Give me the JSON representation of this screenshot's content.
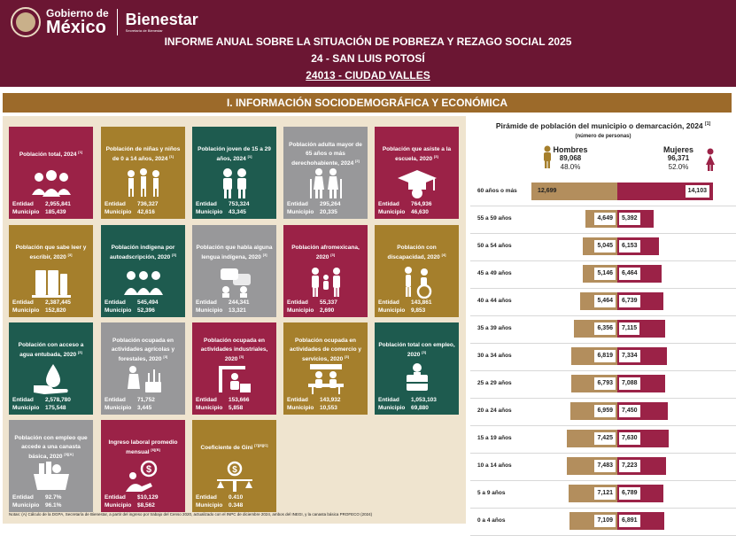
{
  "header": {
    "gobierno_small": "Gobierno de",
    "gobierno_big": "México",
    "bienestar": "Bienestar",
    "bienestar_small": "Secretaría de Bienestar",
    "title": "INFORME ANUAL SOBRE LA SITUACIÓN DE POBREZA Y REZAGO SOCIAL 2025",
    "state": "24 - SAN LUIS POTOSÍ",
    "municipality": "24013 - CIUDAD VALLES"
  },
  "section_title": "I. INFORMACIÓN SOCIODEMOGRÁFICA Y ECONÓMICA",
  "labels": {
    "entidad": "Entidad",
    "municipio": "Municipio"
  },
  "cards": [
    {
      "title": "Población total, 2024",
      "sup": "[1]",
      "entidad": "2,955,841",
      "municipio": "185,439",
      "color": "#9b2247",
      "icon": "people-group-icon"
    },
    {
      "title": "Población de niñas y niños de 0 a 14 años, 2024",
      "sup": "[1]",
      "entidad": "736,327",
      "municipio": "42,616",
      "color": "#a57f2c",
      "icon": "children-icon"
    },
    {
      "title": "Población joven de 15 a 29 años, 2024",
      "sup": "[1]",
      "entidad": "753,324",
      "municipio": "43,345",
      "color": "#1e5b4f",
      "icon": "youth-icon"
    },
    {
      "title": "Población adulta mayor de 65 años o más derechohabiente, 2024",
      "sup": "[2]",
      "entidad": "295,264",
      "municipio": "20,335",
      "color": "#98989a",
      "icon": "elderly-icon"
    },
    {
      "title": "Población que asiste a la escuela, 2020",
      "sup": "[3]",
      "entidad": "764,936",
      "municipio": "46,630",
      "color": "#9b2247",
      "icon": "graduation-icon"
    },
    {
      "title": "Población que sabe leer y escribir, 2020",
      "sup": "[3]",
      "entidad": "2,387,445",
      "municipio": "152,820",
      "color": "#a57f2c",
      "icon": "books-icon"
    },
    {
      "title": "Población indígena por autoadscripción, 2020",
      "sup": "[3]",
      "entidad": "545,494",
      "municipio": "52,396",
      "color": "#1e5b4f",
      "icon": "indigenous-icon"
    },
    {
      "title": "Población que habla alguna lengua indígena, 2020",
      "sup": "[3]",
      "entidad": "244,341",
      "municipio": "13,321",
      "color": "#98989a",
      "icon": "speech-icon"
    },
    {
      "title": "Población afromexicana, 2020",
      "sup": "[3]",
      "entidad": "55,337",
      "municipio": "2,690",
      "color": "#9b2247",
      "icon": "family-icon"
    },
    {
      "title": "Población con discapacidad, 2020",
      "sup": "[4]",
      "entidad": "143,861",
      "municipio": "9,853",
      "color": "#a57f2c",
      "icon": "wheelchair-icon"
    },
    {
      "title": "Población con acceso a agua entubada, 2020",
      "sup": "[3]",
      "entidad": "2,578,780",
      "municipio": "175,548",
      "color": "#1e5b4f",
      "icon": "water-icon"
    },
    {
      "title": "Población ocupada en actividades agrícolas y forestales, 2020",
      "sup": "[3]",
      "entidad": "71,752",
      "municipio": "3,445",
      "color": "#98989a",
      "icon": "agriculture-icon"
    },
    {
      "title": "Población ocupada en actividades industriales, 2020",
      "sup": "[3]",
      "entidad": "153,666",
      "municipio": "5,858",
      "color": "#9b2247",
      "icon": "industry-icon"
    },
    {
      "title": "Población ocupada en actividades de comercio y servicios, 2020",
      "sup": "[3]",
      "entidad": "143,932",
      "municipio": "10,553",
      "color": "#a57f2c",
      "icon": "commerce-icon"
    },
    {
      "title": "Población total con empleo, 2020",
      "sup": "[3]",
      "entidad": "1,053,103",
      "municipio": "69,880",
      "color": "#1e5b4f",
      "icon": "employment-icon"
    },
    {
      "title": "Población con empleo que accede a una canasta básica, 2020",
      "sup": "[3][A]",
      "entidad": "92.7%",
      "municipio": "96.1%",
      "color": "#98989a",
      "icon": "basket-icon"
    },
    {
      "title": "Ingreso laboral promedio mensual",
      "sup": "[6][B]",
      "entidad": "$10,129",
      "municipio": "$8,562",
      "color": "#9b2247",
      "icon": "income-icon"
    },
    {
      "title": "Coeficiente de Gini",
      "sup": "[7][8][C]",
      "entidad": "0.410",
      "municipio": "0.348",
      "color": "#a57f2c",
      "icon": "balance-icon"
    }
  ],
  "pyramid": {
    "title": "Pirámide de población del municipio o demarcación, 2024",
    "sup": "[1]",
    "subtitle": "(número de personas)",
    "hombres": {
      "label": "Hombres",
      "total": "89,068",
      "pct": "48.0%"
    },
    "mujeres": {
      "label": "Mujeres",
      "total": "96,371",
      "pct": "52.0%"
    },
    "colors": {
      "hombres": "#b38e5d",
      "mujeres": "#9b2247"
    }
  },
  "chart_data": {
    "type": "bar",
    "title": "Pirámide de población del municipio o demarcación, 2024",
    "categories": [
      "60 años o más",
      "55 a 59 años",
      "50 a 54 años",
      "45 a 49 años",
      "40 a 44 años",
      "35 a 39 años",
      "30 a 34 años",
      "25 a 29 años",
      "20 a 24 años",
      "15 a 19 años",
      "10 a 14 años",
      "5 a 9 años",
      "0 a 4 años"
    ],
    "series": [
      {
        "name": "Hombres",
        "values": [
          12699,
          4649,
          5045,
          5146,
          5464,
          6356,
          6819,
          6793,
          6959,
          7425,
          7483,
          7121,
          7109
        ]
      },
      {
        "name": "Mujeres",
        "values": [
          14103,
          5392,
          6153,
          6464,
          6739,
          7115,
          7334,
          7088,
          7450,
          7630,
          7223,
          6789,
          6891
        ]
      }
    ],
    "value_labels": {
      "Hombres": [
        "12,699",
        "4,649",
        "5,045",
        "5,146",
        "5,464",
        "6,356",
        "6,819",
        "6,793",
        "6,959",
        "7,425",
        "7,483",
        "7,121",
        "7,109"
      ],
      "Mujeres": [
        "14,103",
        "5,392",
        "6,153",
        "6,464",
        "6,739",
        "7,115",
        "7,334",
        "7,088",
        "7,450",
        "7,630",
        "7,223",
        "6,789",
        "6,891"
      ]
    }
  },
  "notes": "Notas: (A) Cálculo de la DGPA, Secretaría de Bienestar, a partir del ingreso por trabajo del Censo 2020, actualizado con el INPC de diciembre 2024, ambos del INEGI, y la canasta básica PROFECO (2024)"
}
